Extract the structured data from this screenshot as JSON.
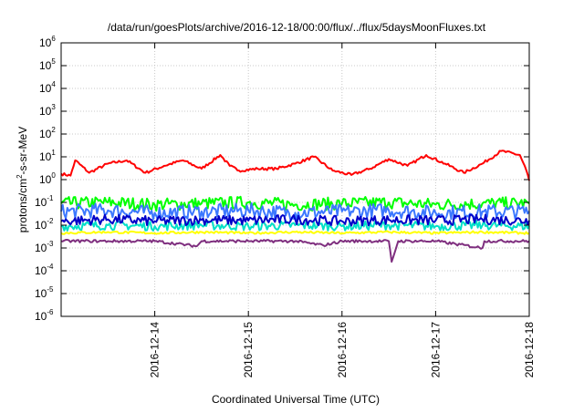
{
  "chart_data": {
    "type": "line",
    "title": "/data/run/goesPlots/archive/2016-12-18/00:00/flux/../flux/5daysMoonFluxes.txt",
    "xlabel": "Coordinated Universal Time (UTC)",
    "ylabel_main": "protons/cm",
    "ylabel_sup": "2",
    "ylabel_rest": "-s-sr-MeV",
    "y_scale": "log",
    "ylim_exp": [
      -6,
      6
    ],
    "ytick_exponents": [
      -6,
      -5,
      -4,
      -3,
      -2,
      -1,
      0,
      1,
      2,
      3,
      4,
      5,
      6
    ],
    "ytick_base": "10",
    "xlim": [
      "2016-12-13T00:00",
      "2016-12-18T00:00"
    ],
    "xticks": [
      {
        "value": "2016-12-14T00:00",
        "label": "2016-12-14"
      },
      {
        "value": "2016-12-15T00:00",
        "label": "2016-12-15"
      },
      {
        "value": "2016-12-16T00:00",
        "label": "2016-12-16"
      },
      {
        "value": "2016-12-17T00:00",
        "label": "2016-12-17"
      },
      {
        "value": "2016-12-18T00:00",
        "label": "2016-12-18"
      }
    ],
    "grid": true,
    "legend": "none",
    "series": [
      {
        "color": "#ff0000",
        "x_days": [
          0.0,
          0.1,
          0.15,
          0.3,
          0.5,
          0.7,
          0.9,
          1.1,
          1.3,
          1.5,
          1.7,
          1.8,
          1.9,
          2.1,
          2.3,
          2.5,
          2.7,
          2.9,
          3.1,
          3.3,
          3.5,
          3.7,
          3.9,
          4.1,
          4.3,
          4.5,
          4.7,
          4.9,
          4.97,
          5.0
        ],
        "values": [
          1.8,
          1.5,
          7,
          2,
          5,
          7,
          2,
          4,
          7,
          3,
          12,
          4,
          2.5,
          3,
          3,
          5,
          10,
          2.5,
          1.6,
          3,
          8,
          4,
          12,
          5,
          2,
          5,
          18,
          12,
          2.5,
          0.9
        ]
      },
      {
        "color": "#00ff00",
        "x_days": [
          0.0,
          0.5,
          1.0,
          1.5,
          2.0,
          2.5,
          3.0,
          3.5,
          4.0,
          4.5,
          5.0
        ],
        "values": [
          0.09,
          0.1,
          0.08,
          0.09,
          0.1,
          0.08,
          0.09,
          0.1,
          0.08,
          0.09,
          0.09
        ]
      },
      {
        "color": "#3c78ff",
        "x_days": [
          0.0,
          0.5,
          1.0,
          1.5,
          2.0,
          2.5,
          3.0,
          3.5,
          4.0,
          4.5,
          5.0
        ],
        "values": [
          0.04,
          0.045,
          0.035,
          0.04,
          0.045,
          0.035,
          0.04,
          0.045,
          0.035,
          0.04,
          0.04
        ]
      },
      {
        "color": "#00e0c8",
        "x_days": [
          0.0,
          0.5,
          1.0,
          1.5,
          2.0,
          2.5,
          3.0,
          3.5,
          4.0,
          4.5,
          5.0
        ],
        "values": [
          0.009,
          0.01,
          0.009,
          0.01,
          0.009,
          0.01,
          0.009,
          0.01,
          0.009,
          0.01,
          0.009
        ]
      },
      {
        "color": "#0000c8",
        "x_days": [
          0.0,
          0.5,
          1.0,
          1.5,
          2.0,
          2.5,
          3.0,
          3.5,
          4.0,
          4.5,
          5.0
        ],
        "values": [
          0.015,
          0.018,
          0.015,
          0.017,
          0.016,
          0.018,
          0.015,
          0.017,
          0.016,
          0.018,
          0.016
        ]
      },
      {
        "color": "#ffff00",
        "x_days": [
          0.0,
          0.5,
          1.0,
          1.5,
          2.0,
          2.5,
          3.0,
          3.5,
          4.0,
          4.5,
          5.0
        ],
        "values": [
          0.0045,
          0.005,
          0.0045,
          0.005,
          0.0045,
          0.005,
          0.0045,
          0.005,
          0.0045,
          0.005,
          0.0045
        ]
      },
      {
        "color": "#7f2f7f",
        "x_days": [
          0.0,
          0.3,
          0.5,
          1.0,
          1.45,
          1.5,
          2.0,
          2.5,
          2.8,
          3.0,
          3.5,
          3.53,
          3.6,
          4.0,
          4.5,
          4.52,
          5.0
        ],
        "values": [
          0.002,
          0.002,
          0.002,
          0.002,
          0.0012,
          0.002,
          0.002,
          0.002,
          0.0013,
          0.002,
          0.002,
          0.00025,
          0.002,
          0.002,
          0.001,
          0.002,
          0.002
        ]
      }
    ]
  }
}
